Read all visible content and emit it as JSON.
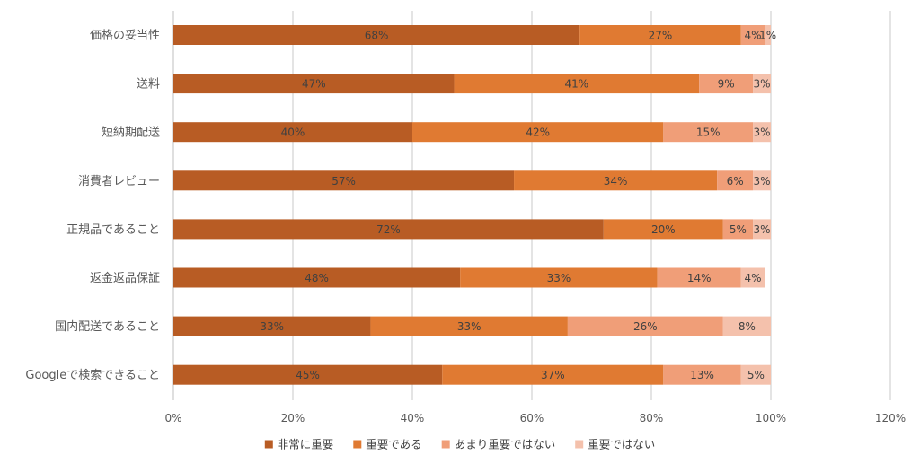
{
  "chart_data": {
    "type": "bar",
    "orientation": "horizontal",
    "stacked": true,
    "categories": [
      "価格の妥当性",
      "送料",
      "短納期配送",
      "消費者レビュー",
      "正規品であること",
      "返金返品保証",
      "国内配送であること",
      "Googleで検索できること"
    ],
    "series": [
      {
        "name": "非常に重要",
        "color": "#B85C24",
        "values": [
          68,
          47,
          40,
          57,
          72,
          48,
          33,
          45
        ]
      },
      {
        "name": "重要である",
        "color": "#E07A32",
        "values": [
          27,
          41,
          42,
          34,
          20,
          33,
          33,
          37
        ]
      },
      {
        "name": "あまり重要ではない",
        "color": "#F09E78",
        "values": [
          4,
          9,
          15,
          6,
          5,
          14,
          26,
          13
        ]
      },
      {
        "name": "重要ではない",
        "color": "#F4C1AC",
        "values": [
          1,
          3,
          3,
          3,
          3,
          4,
          8,
          5
        ]
      }
    ],
    "xlim": [
      0,
      120
    ],
    "xticks": [
      0,
      20,
      40,
      60,
      80,
      100,
      120
    ],
    "tick_format": "{v}%",
    "value_format": "{v}%",
    "grid": true,
    "legend_position": "bottom"
  }
}
